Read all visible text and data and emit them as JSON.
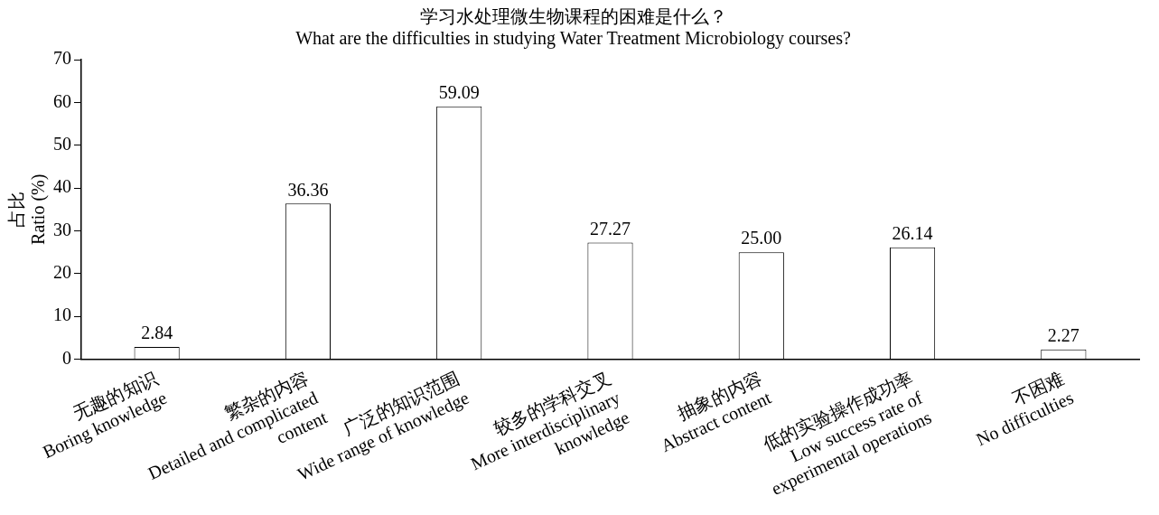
{
  "chart_data": {
    "type": "bar",
    "title": "学习水处理微生物课程的困难是什么？",
    "subtitle": "What are the difficulties in studying Water Treatment Microbiology courses?",
    "ylabel": "占比\nRatio (%)",
    "categories": [
      "无趣的知识\nBoring knowledge",
      "繁杂的内容\nDetailed and complicated\ncontent",
      "广泛的知识范围\nWide range of knowledge",
      "较多的学科交叉\nMore interdisciplinary\nknowledge",
      "抽象的内容\nAbstract content",
      "低的实验操作成功率\nLow success rate of\nexperimental operations",
      "不困难\nNo difficulties"
    ],
    "values": [
      2.84,
      36.36,
      59.09,
      27.27,
      25.0,
      26.14,
      2.27
    ],
    "value_labels": [
      "2.84",
      "36.36",
      "59.09",
      "27.27",
      "25.00",
      "26.14",
      "2.27"
    ],
    "color": "#ffffff",
    "ylim": [
      0,
      70
    ],
    "yticks": [
      0,
      10,
      20,
      30,
      40,
      50,
      60,
      70
    ],
    "grid": false,
    "legend": false
  }
}
